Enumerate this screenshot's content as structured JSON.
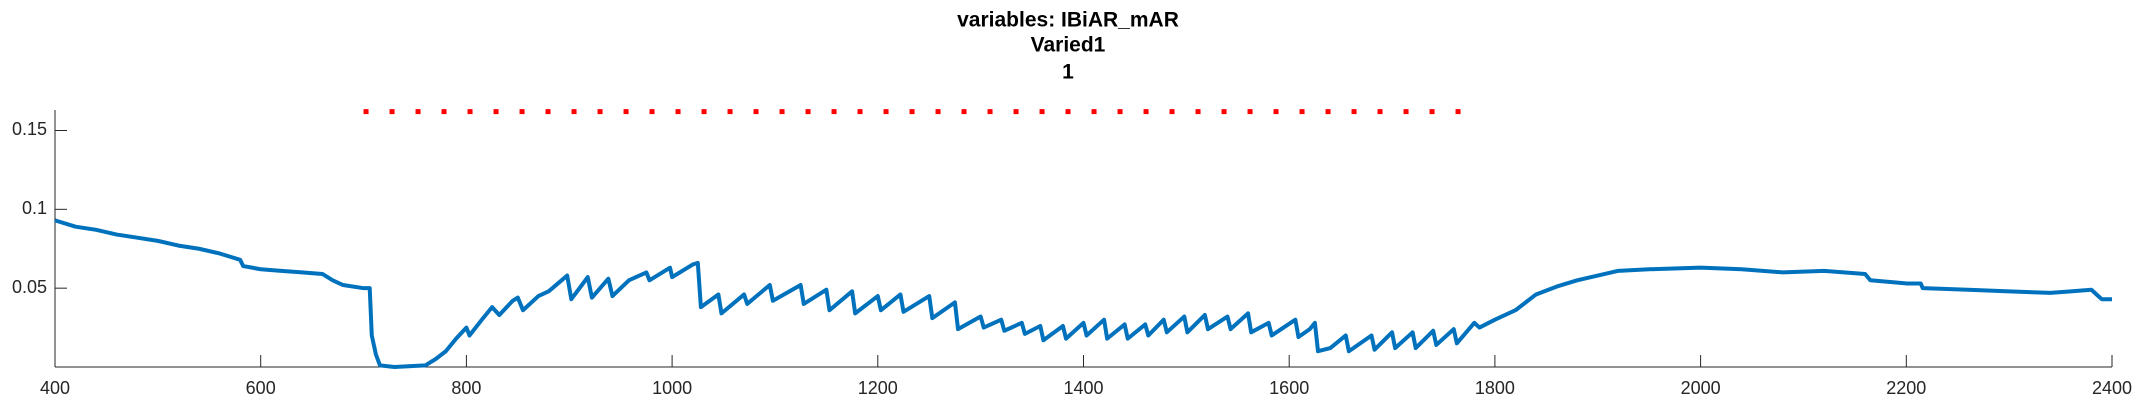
{
  "chart_data": {
    "type": "line",
    "title": "variables: IBiAR_mAR",
    "subtitle": "Varied1",
    "subtitle2": "1",
    "xlim": [
      400,
      2400
    ],
    "ylim": [
      0,
      0.163
    ],
    "xticks": [
      400,
      600,
      800,
      1000,
      1200,
      1400,
      1600,
      1800,
      2000,
      2200,
      2400
    ],
    "yticks": [
      0.05,
      0.1,
      0.15
    ],
    "series": [
      {
        "color": "#0072bd",
        "style": "solid",
        "x": [
          400,
          420,
          440,
          460,
          480,
          500,
          520,
          540,
          560,
          570,
          580,
          583,
          600,
          620,
          640,
          660,
          670,
          680,
          700,
          706,
          708,
          712,
          716,
          730,
          760,
          770,
          780,
          790,
          800,
          803,
          815,
          825,
          832,
          845,
          850,
          855,
          870,
          880,
          898,
          902,
          918,
          922,
          938,
          942,
          958,
          975,
          978,
          998,
          1000,
          1020,
          1025,
          1028,
          1045,
          1048,
          1070,
          1073,
          1095,
          1098,
          1125,
          1128,
          1150,
          1153,
          1175,
          1178,
          1200,
          1203,
          1222,
          1225,
          1250,
          1253,
          1275,
          1278,
          1300,
          1303,
          1320,
          1323,
          1340,
          1343,
          1358,
          1361,
          1380,
          1383,
          1400,
          1403,
          1420,
          1423,
          1440,
          1443,
          1460,
          1463,
          1478,
          1481,
          1498,
          1501,
          1518,
          1521,
          1540,
          1543,
          1560,
          1563,
          1580,
          1583,
          1606,
          1609,
          1620,
          1625,
          1628,
          1640,
          1655,
          1658,
          1680,
          1683,
          1700,
          1703,
          1720,
          1723,
          1740,
          1743,
          1760,
          1763,
          1780,
          1785,
          1800,
          1820,
          1840,
          1860,
          1880,
          1900,
          1920,
          1950,
          2000,
          2040,
          2080,
          2120,
          2160,
          2165,
          2200,
          2214,
          2216,
          2260,
          2300,
          2340,
          2360,
          2380,
          2385,
          2390,
          2400
        ],
        "values": [
          0.093,
          0.089,
          0.087,
          0.084,
          0.082,
          0.08,
          0.077,
          0.075,
          0.072,
          0.07,
          0.068,
          0.064,
          0.062,
          0.061,
          0.06,
          0.059,
          0.055,
          0.052,
          0.05,
          0.05,
          0.02,
          0.008,
          0.001,
          0.0,
          0.001,
          0.005,
          0.01,
          0.018,
          0.025,
          0.02,
          0.03,
          0.038,
          0.033,
          0.042,
          0.044,
          0.036,
          0.045,
          0.048,
          0.058,
          0.043,
          0.057,
          0.044,
          0.056,
          0.045,
          0.055,
          0.06,
          0.055,
          0.063,
          0.057,
          0.065,
          0.066,
          0.038,
          0.046,
          0.034,
          0.046,
          0.04,
          0.052,
          0.042,
          0.052,
          0.04,
          0.049,
          0.036,
          0.048,
          0.034,
          0.045,
          0.036,
          0.046,
          0.035,
          0.045,
          0.031,
          0.041,
          0.024,
          0.032,
          0.025,
          0.03,
          0.023,
          0.028,
          0.021,
          0.026,
          0.017,
          0.026,
          0.018,
          0.028,
          0.02,
          0.03,
          0.018,
          0.027,
          0.018,
          0.027,
          0.02,
          0.03,
          0.022,
          0.032,
          0.022,
          0.033,
          0.024,
          0.032,
          0.024,
          0.034,
          0.022,
          0.028,
          0.02,
          0.03,
          0.019,
          0.024,
          0.028,
          0.01,
          0.012,
          0.02,
          0.01,
          0.02,
          0.011,
          0.022,
          0.012,
          0.022,
          0.012,
          0.023,
          0.014,
          0.024,
          0.015,
          0.028,
          0.025,
          0.03,
          0.036,
          0.046,
          0.051,
          0.055,
          0.058,
          0.061,
          0.062,
          0.063,
          0.062,
          0.06,
          0.061,
          0.059,
          0.055,
          0.053,
          0.053,
          0.05,
          0.049,
          0.048,
          0.047,
          0.048,
          0.049,
          0.046,
          0.043,
          0.043
        ]
      },
      {
        "color": "#ff0000",
        "style": "dotted",
        "x": [
          700,
          1780
        ],
        "values": [
          0.162,
          0.162
        ]
      }
    ]
  }
}
